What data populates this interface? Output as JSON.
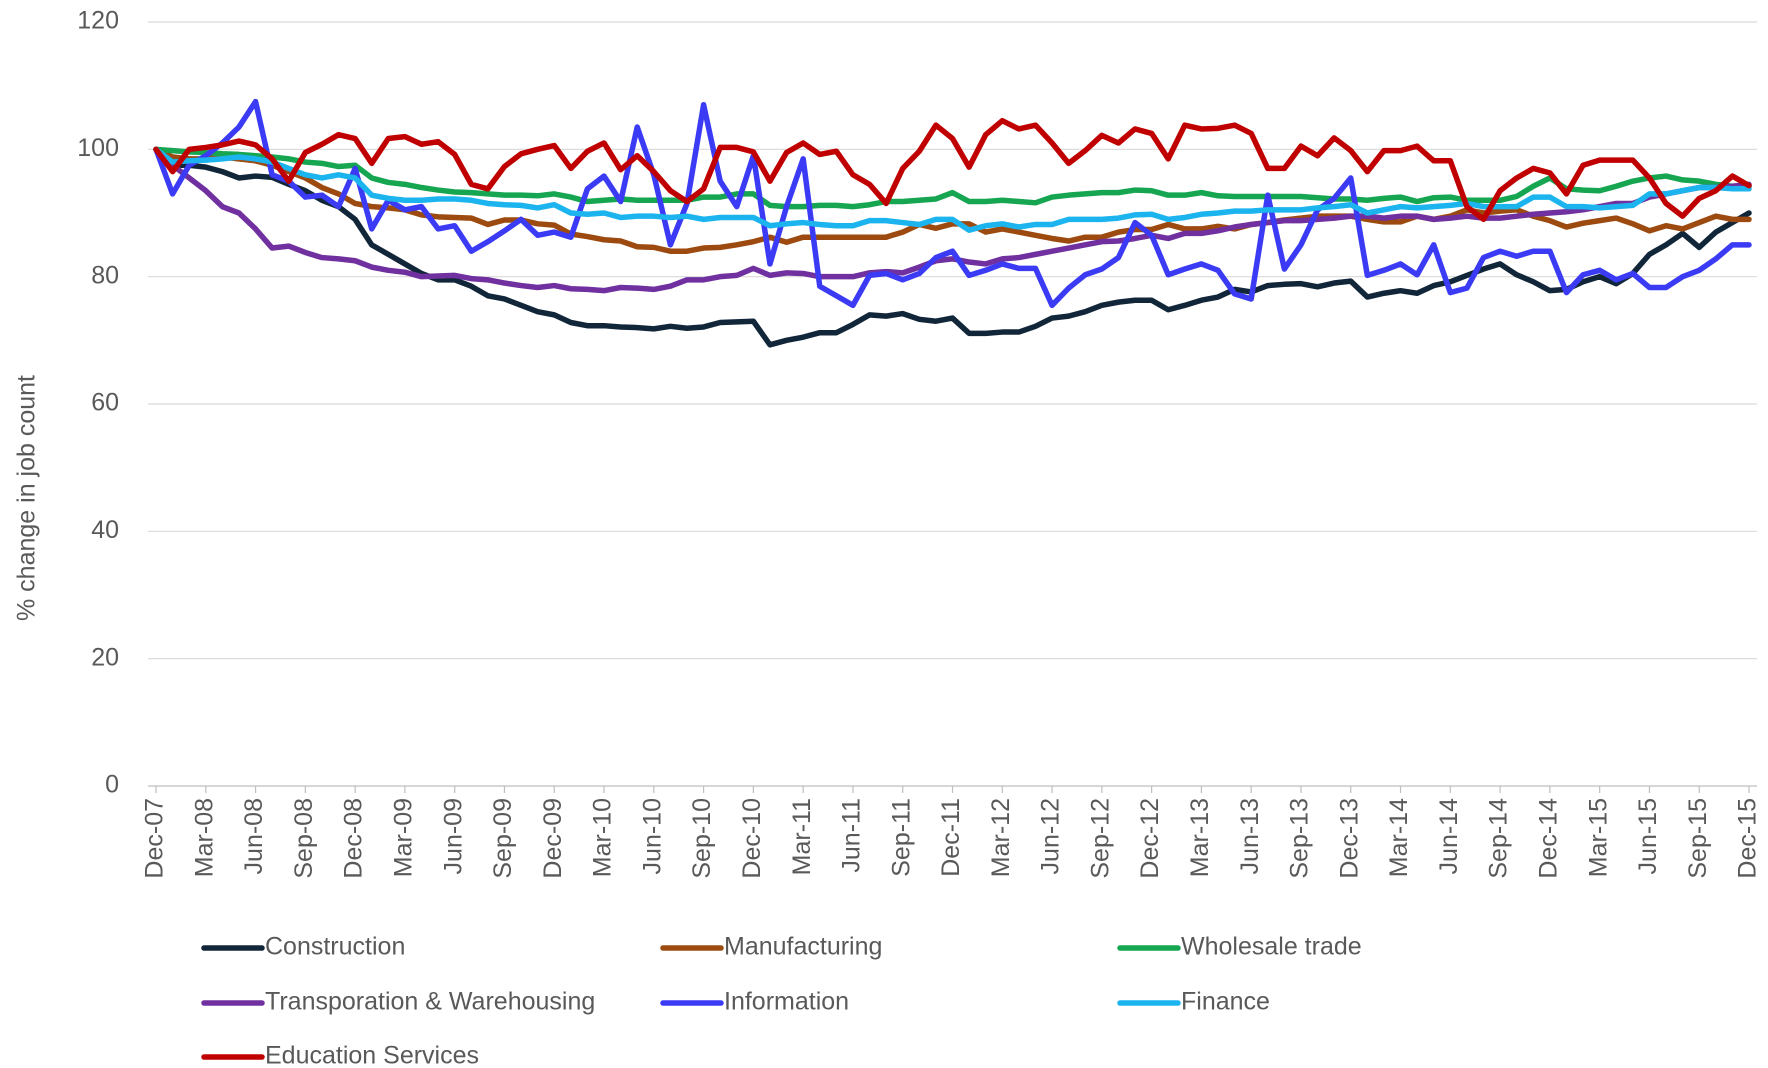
{
  "chart_data": {
    "type": "line",
    "y_label": "% change in job count",
    "categories": [
      "Dec-07",
      null,
      null,
      "Mar-08",
      null,
      null,
      "Jun-08",
      null,
      null,
      "Sep-08",
      null,
      null,
      "Dec-08",
      null,
      null,
      "Mar-09",
      null,
      null,
      "Jun-09",
      null,
      null,
      "Sep-09",
      null,
      null,
      "Dec-09",
      null,
      null,
      "Mar-10",
      null,
      null,
      "Jun-10",
      null,
      null,
      "Sep-10",
      null,
      null,
      "Dec-10",
      null,
      null,
      "Mar-11",
      null,
      null,
      "Jun-11",
      null,
      null,
      "Sep-11",
      null,
      null,
      "Dec-11",
      null,
      null,
      "Mar-12",
      null,
      null,
      "Jun-12",
      null,
      null,
      "Sep-12",
      null,
      null,
      "Dec-12",
      null,
      null,
      "Mar-13",
      null,
      null,
      "Jun-13",
      null,
      null,
      "Sep-13",
      null,
      null,
      "Dec-13",
      null,
      null,
      "Mar-14",
      null,
      null,
      "Jun-14",
      null,
      null,
      "Sep-14",
      null,
      null,
      "Dec-14",
      null,
      null,
      "Mar-15",
      null,
      null,
      "Jun-15",
      null,
      null,
      "Sep-15",
      null,
      null,
      "Dec-15"
    ],
    "series": [
      {
        "name": "Construction",
        "color": "#12263a",
        "values": [
          100,
          97.5,
          97.5,
          97.2,
          96.5,
          95.5,
          95.8,
          95.6,
          94.5,
          93.5,
          92,
          91,
          89,
          85,
          83.5,
          82,
          80.5,
          79.5,
          79.5,
          78.5,
          77,
          76.5,
          75.5,
          74.5,
          74,
          72.8,
          72.3,
          72.3,
          72.1,
          72,
          71.8,
          72.2,
          71.9,
          72.1,
          72.8,
          72.9,
          73,
          69.3,
          70,
          70.5,
          71.2,
          71.2,
          72.5,
          74,
          73.8,
          74.2,
          73.3,
          73,
          73.5,
          71.1,
          71.1,
          71.3,
          71.3,
          72.2,
          73.5,
          73.8,
          74.5,
          75.5,
          76,
          76.3,
          76.3,
          74.8,
          75.5,
          76.3,
          76.8,
          78,
          77.6,
          78.6,
          78.8,
          78.9,
          78.4,
          79,
          79.3,
          76.8,
          77.4,
          77.8,
          77.4,
          78.6,
          79.2,
          80.2,
          81.2,
          82,
          80.3,
          79.2,
          77.8,
          78,
          79.2,
          80,
          78.9,
          80.5,
          83.5,
          85,
          86.8,
          84.6,
          87,
          88.5,
          90
        ]
      },
      {
        "name": "Manufacturing",
        "color": "#9c4a0f",
        "values": [
          100,
          98.8,
          98.5,
          98.5,
          98.8,
          98.5,
          98.2,
          97.5,
          96.5,
          95.5,
          94,
          93,
          91.5,
          91,
          90.8,
          90.5,
          89.7,
          89.4,
          89.3,
          89.2,
          88.2,
          88.9,
          88.9,
          88.3,
          88.1,
          86.7,
          86.3,
          85.8,
          85.6,
          84.7,
          84.6,
          84,
          84,
          84.5,
          84.6,
          85,
          85.5,
          86.2,
          85.4,
          86.2,
          86.2,
          86.2,
          86.2,
          86.2,
          86.2,
          87,
          88.2,
          87.6,
          88.3,
          88.3,
          87,
          87.5,
          87,
          86.5,
          86,
          85.6,
          86.2,
          86.2,
          87,
          87.4,
          87.4,
          88.2,
          87.5,
          87.5,
          87.9,
          87.5,
          88.2,
          88.5,
          88.9,
          89.2,
          89.5,
          89.5,
          89.5,
          89,
          88.6,
          88.6,
          89.5,
          89,
          89.5,
          90.5,
          90,
          90.3,
          90.5,
          89.5,
          88.8,
          87.8,
          88.4,
          88.8,
          89.2,
          88.3,
          87.2,
          88,
          87.5,
          88.5,
          89.5,
          89,
          89
        ]
      },
      {
        "name": "Wholesale trade",
        "color": "#16a651",
        "values": [
          100,
          99.8,
          99.6,
          99.5,
          99.3,
          99.2,
          99,
          98.8,
          98.5,
          98,
          97.8,
          97.3,
          97.5,
          95.5,
          94.8,
          94.5,
          94,
          93.6,
          93.3,
          93.2,
          93,
          92.8,
          92.8,
          92.7,
          93,
          92.5,
          91.8,
          92,
          92.2,
          92,
          92,
          92,
          92,
          92.5,
          92.5,
          93,
          93,
          91.2,
          91,
          91,
          91.2,
          91.2,
          91,
          91.3,
          91.8,
          91.8,
          92,
          92.2,
          93.2,
          91.8,
          91.8,
          92,
          91.8,
          91.6,
          92.5,
          92.8,
          93,
          93.2,
          93.2,
          93.6,
          93.5,
          92.8,
          92.8,
          93.2,
          92.7,
          92.6,
          92.6,
          92.6,
          92.6,
          92.6,
          92.4,
          92.2,
          92.2,
          92,
          92.3,
          92.5,
          91.8,
          92.4,
          92.5,
          92,
          92,
          92,
          92.6,
          94.2,
          95.5,
          93.8,
          93.6,
          93.5,
          94.2,
          95,
          95.5,
          95.8,
          95.2,
          95,
          94.5,
          94.2,
          94.2
        ]
      },
      {
        "name": "Transporation & Warehousing",
        "color": "#7030a0",
        "values": [
          100,
          97.5,
          95.5,
          93.5,
          91,
          90,
          87.5,
          84.5,
          84.8,
          83.8,
          83,
          82.8,
          82.5,
          81.5,
          81,
          80.7,
          80,
          80.1,
          80.2,
          79.7,
          79.5,
          79,
          78.6,
          78.3,
          78.6,
          78.1,
          78,
          77.8,
          78.3,
          78.2,
          78,
          78.5,
          79.5,
          79.5,
          80,
          80.2,
          81.3,
          80.2,
          80.6,
          80.5,
          80,
          80,
          80,
          80.6,
          80.8,
          80.6,
          81.5,
          82.5,
          82.8,
          82.3,
          82,
          82.8,
          83,
          83.5,
          84,
          84.5,
          85,
          85.5,
          85.6,
          86,
          86.5,
          86,
          86.8,
          86.8,
          87.2,
          87.8,
          88.2,
          88.5,
          88.8,
          88.8,
          89,
          89.2,
          89.5,
          89.5,
          89.2,
          89.5,
          89.5,
          89,
          89.2,
          89.5,
          89.2,
          89.2,
          89.5,
          89.8,
          90,
          90.2,
          90.5,
          91,
          91.5,
          91.5,
          92.5,
          93,
          93.5,
          94,
          94,
          94.2,
          94.5
        ]
      },
      {
        "name": "Information",
        "color": "#3b3bf5",
        "values": [
          100,
          93,
          97.5,
          99,
          101,
          103.5,
          107.5,
          96,
          95,
          92.5,
          92.8,
          91,
          97,
          87.5,
          92,
          90.5,
          91,
          87.5,
          88,
          84,
          85.5,
          87.2,
          89,
          86.5,
          87,
          86.2,
          93.8,
          95.8,
          91.8,
          103.5,
          96,
          85,
          91.5,
          107,
          95,
          91,
          99,
          82,
          91,
          98.5,
          78.5,
          77,
          75.5,
          80.2,
          80.5,
          79.5,
          80.5,
          83,
          84,
          80.2,
          81,
          82,
          81.3,
          81.3,
          75.5,
          78.2,
          80.3,
          81.2,
          83,
          88.5,
          86.5,
          80.3,
          81.2,
          82,
          81,
          77.3,
          76.5,
          92.8,
          81.2,
          85,
          90.5,
          92.3,
          95.5,
          80.2,
          81,
          82,
          80.3,
          85,
          77.5,
          78.2,
          83,
          84,
          83.2,
          84,
          84,
          77.5,
          80.3,
          81,
          79.5,
          80.5,
          78.3,
          78.3,
          80,
          81,
          82.8,
          85,
          85
        ]
      },
      {
        "name": "Finance",
        "color": "#1cb4ee",
        "values": [
          100,
          98,
          98.2,
          98.3,
          98.5,
          98.8,
          98.5,
          98,
          97,
          96,
          95.5,
          96,
          95.5,
          92.8,
          92.3,
          92,
          92,
          92.2,
          92.2,
          92,
          91.5,
          91.3,
          91.2,
          90.8,
          91.3,
          90,
          89.8,
          90,
          89.3,
          89.5,
          89.5,
          89.3,
          89.5,
          89,
          89.3,
          89.3,
          89.3,
          88,
          88.3,
          88.5,
          88.2,
          88,
          88,
          88.8,
          88.8,
          88.5,
          88.2,
          89,
          89,
          87.3,
          88,
          88.3,
          87.8,
          88.2,
          88.2,
          89,
          89,
          89,
          89.2,
          89.7,
          89.8,
          89,
          89.3,
          89.8,
          90,
          90.3,
          90.3,
          90.5,
          90.5,
          90.5,
          90.8,
          91,
          91.3,
          90,
          90.5,
          91,
          90.8,
          91,
          91.2,
          91.5,
          91,
          91,
          91,
          92.5,
          92.5,
          91,
          91,
          90.8,
          91,
          91.2,
          93,
          93,
          93.5,
          94,
          94,
          93.8,
          93.8
        ]
      },
      {
        "name": "Education Services",
        "color": "#c00000",
        "values": [
          100,
          96.5,
          100,
          100.3,
          100.7,
          101.3,
          100.7,
          98.5,
          95,
          99.5,
          100.8,
          102.3,
          101.7,
          97.8,
          101.7,
          102,
          100.8,
          101.2,
          99.2,
          94.5,
          93.8,
          97.3,
          99.3,
          100,
          100.6,
          97,
          99.7,
          101,
          96.8,
          99,
          96.5,
          93.5,
          91.8,
          93.8,
          100.3,
          100.3,
          99.6,
          95,
          99.5,
          101,
          99.2,
          99.7,
          96,
          94.5,
          91.5,
          97,
          99.7,
          103.8,
          101.7,
          97.2,
          102.3,
          104.5,
          103.2,
          103.8,
          101,
          97.8,
          99.8,
          102.2,
          101,
          103.2,
          102.5,
          98.5,
          103.8,
          103.2,
          103.3,
          103.8,
          102.5,
          97,
          97,
          100.5,
          99,
          101.8,
          99.8,
          96.5,
          99.8,
          99.8,
          100.5,
          98.2,
          98.2,
          91,
          89,
          93.5,
          95.5,
          97,
          96.3,
          93,
          97.5,
          98.3,
          98.3,
          98.3,
          95.5,
          91.5,
          89.5,
          92.3,
          93.5,
          95.8,
          94.3
        ]
      }
    ],
    "ylim": [
      0,
      120
    ],
    "yticks": [
      0,
      20,
      40,
      60,
      80,
      100,
      120
    ],
    "grid": true
  }
}
